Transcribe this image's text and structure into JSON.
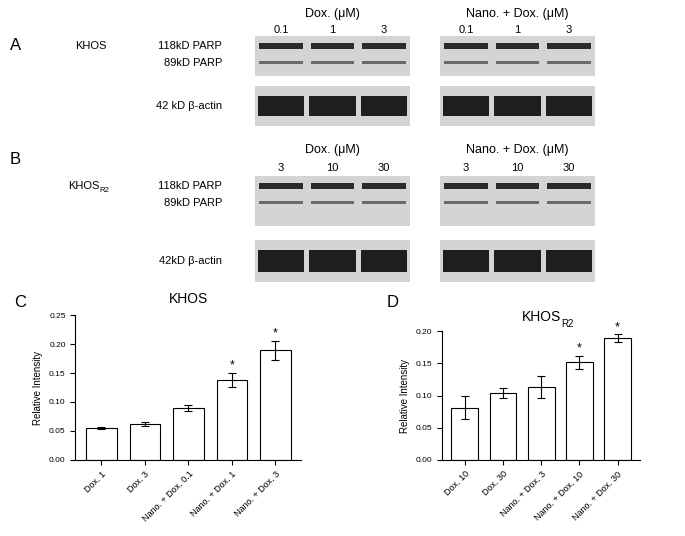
{
  "blots": [
    {
      "panel": "A",
      "cell_line": {
        "text": "KHOS"
      },
      "rows": [
        "118kD PARP",
        "89kD PARP",
        "42 kD β-actin"
      ],
      "groups": [
        {
          "label": "Dox. (μM)",
          "lanes": [
            "0.1",
            "1",
            "3"
          ]
        },
        {
          "label": "Nano. + Dox. (μM)",
          "lanes": [
            "0.1",
            "1",
            "3"
          ]
        }
      ]
    },
    {
      "panel": "B",
      "cell_line": {
        "text": "KHOS",
        "subscript": "R2"
      },
      "rows": [
        "118kD PARP",
        "89kD PARP",
        "42kD β-actin"
      ],
      "groups": [
        {
          "label": "Dox. (μM)",
          "lanes": [
            "3",
            "10",
            "30"
          ]
        },
        {
          "label": "Nano. + Dox. (μM)",
          "lanes": [
            "3",
            "10",
            "30"
          ]
        }
      ]
    }
  ],
  "chart_data": [
    {
      "type": "bar",
      "panel": "C",
      "title": {
        "text": "KHOS"
      },
      "y_label": "Relative Intensity",
      "categories": [
        "Dox. 1",
        "Dox. 3",
        "Nano. + Dox. 0.1",
        "Nano. + Dox. 1",
        "Nano. + Dox. 3"
      ],
      "values": [
        0.055,
        0.062,
        0.089,
        0.138,
        0.189
      ],
      "errors": [
        0.001,
        0.003,
        0.005,
        0.012,
        0.017
      ],
      "significance": [
        null,
        null,
        null,
        "*",
        "*"
      ],
      "color": "#ffffff",
      "ylim": [
        0,
        0.25
      ],
      "yticks": [
        {
          "value": 0,
          "label": "0.00"
        },
        0.05,
        {
          "value": 0.1,
          "label": "0.10"
        },
        0.15,
        {
          "value": 0.2,
          "label": "0.20"
        },
        0.25
      ],
      "grid": false
    },
    {
      "type": "bar",
      "panel": "D",
      "title": {
        "text": "KHOS",
        "subscript": "R2"
      },
      "y_label": "Relative Intensity",
      "categories": [
        "Dox. 10",
        "Dox. 30",
        "Nano. + Dox. 3",
        "Nano. + Dox. 10",
        "Nano. + Dox. 30"
      ],
      "values": [
        0.081,
        0.104,
        0.113,
        0.152,
        0.189
      ],
      "errors": [
        0.018,
        0.008,
        0.017,
        0.01,
        0.006
      ],
      "significance": [
        null,
        null,
        null,
        "*",
        "*"
      ],
      "color": "#ffffff",
      "ylim": [
        0,
        0.2
      ],
      "yticks": [
        {
          "value": 0,
          "label": "0.00"
        },
        0.05,
        {
          "value": 0.1,
          "label": "0.10"
        },
        0.15,
        {
          "value": 0.2,
          "label": "0.20"
        }
      ],
      "grid": false
    }
  ]
}
